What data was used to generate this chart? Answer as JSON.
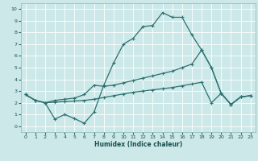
{
  "xlabel": "Humidex (Indice chaleur)",
  "bg_color": "#cce8e8",
  "grid_color": "#ffffff",
  "line_color": "#2d7070",
  "xlim_min": -0.5,
  "xlim_max": 23.5,
  "ylim_min": -0.5,
  "ylim_max": 10.5,
  "line1_x": [
    0,
    1,
    2,
    3,
    4,
    5,
    6,
    7,
    8,
    9,
    10,
    11,
    12,
    13,
    14,
    15,
    16,
    17,
    18,
    19,
    20,
    21,
    22,
    23
  ],
  "line1_y": [
    2.7,
    2.2,
    2.0,
    0.6,
    1.0,
    0.65,
    0.25,
    1.2,
    3.5,
    5.4,
    7.0,
    7.5,
    8.5,
    8.6,
    9.7,
    9.3,
    9.3,
    7.8,
    6.5,
    5.0,
    2.8,
    1.85,
    2.5,
    2.6
  ],
  "line2_x": [
    0,
    1,
    2,
    3,
    4,
    5,
    6,
    7,
    8,
    9,
    10,
    11,
    12,
    13,
    14,
    15,
    16,
    17,
    18,
    19,
    20,
    21,
    22,
    23
  ],
  "line2_y": [
    2.7,
    2.2,
    2.0,
    2.2,
    2.3,
    2.4,
    2.7,
    3.5,
    3.4,
    3.5,
    3.7,
    3.9,
    4.1,
    4.3,
    4.5,
    4.7,
    5.0,
    5.3,
    6.5,
    5.0,
    2.8,
    1.85,
    2.5,
    2.6
  ],
  "line3_x": [
    0,
    1,
    2,
    3,
    4,
    5,
    6,
    7,
    8,
    9,
    10,
    11,
    12,
    13,
    14,
    15,
    16,
    17,
    18,
    19,
    20,
    21,
    22,
    23
  ],
  "line3_y": [
    2.7,
    2.2,
    2.0,
    2.05,
    2.1,
    2.15,
    2.2,
    2.3,
    2.45,
    2.6,
    2.75,
    2.9,
    3.0,
    3.1,
    3.2,
    3.3,
    3.45,
    3.6,
    3.75,
    2.0,
    2.8,
    1.85,
    2.5,
    2.6
  ]
}
